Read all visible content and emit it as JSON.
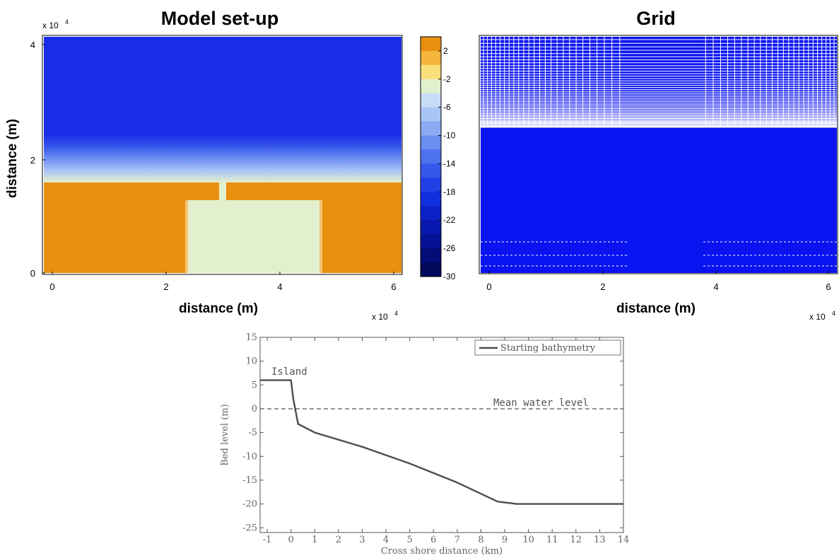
{
  "chart_data": [
    {
      "type": "heatmap",
      "title": "Model set-up",
      "xlabel": "distance (m)",
      "ylabel": "distance (m)",
      "x_exponent_label": "x 10",
      "x_exponent_power": "4",
      "y_exponent_label": "x 10",
      "y_exponent_power": "4",
      "xlim": [
        -0.2,
        6.2
      ],
      "ylim": [
        -0.1,
        4.1
      ],
      "xticks": [
        "0",
        "2",
        "4",
        "6"
      ],
      "yticks": [
        "0",
        "2",
        "4"
      ],
      "description_values": {
        "deep_water_level": -20,
        "shore_transition_y_range": [
          1.6,
          2.4
        ],
        "land_level": 2,
        "island_channel_level": -2,
        "channel_x_range": [
          2.35,
          4.7
        ],
        "channel_y_top": 1.25,
        "inlet_x_range": [
          2.95,
          3.05
        ]
      },
      "colorbar": {
        "ticks": [
          "2",
          "-2",
          "-6",
          "-10",
          "-14",
          "-18",
          "-22",
          "-26",
          "-30"
        ],
        "range": [
          -30,
          4
        ],
        "colors": [
          "#e8900f",
          "#f5b43c",
          "#f9e07a",
          "#e3f0cd",
          "#c7dcf7",
          "#a9c4f7",
          "#8aaaf4",
          "#6a8ef2",
          "#4d72ef",
          "#3458ea",
          "#2040e6",
          "#1230e0",
          "#0c22c8",
          "#0818ae",
          "#051294",
          "#030c78",
          "#02085c"
        ]
      }
    },
    {
      "type": "heatmap",
      "title": "Grid",
      "xlabel": "distance (m)",
      "x_exponent_label": "x 10",
      "x_exponent_power": "4",
      "xlim": [
        -0.2,
        6.2
      ],
      "ylim": [
        -0.1,
        4.1
      ],
      "xticks": [
        "0",
        "2",
        "4",
        "6"
      ],
      "grid_color": "#0a14f0"
    },
    {
      "type": "line",
      "xlabel": "Cross shore distance (km)",
      "ylabel": "Bed level (m)",
      "xlim": [
        -1.3,
        14
      ],
      "ylim": [
        -26,
        15
      ],
      "xticks": [
        "-1",
        "0",
        "1",
        "2",
        "3",
        "4",
        "5",
        "6",
        "7",
        "8",
        "9",
        "10",
        "11",
        "12",
        "13",
        "14"
      ],
      "yticks": [
        "15",
        "10",
        "5",
        "0",
        "-5",
        "-10",
        "-15",
        "-20",
        "-25"
      ],
      "legend_placement": "top-right",
      "series": [
        {
          "name": "Starting bathymetry",
          "x": [
            -1.3,
            0,
            0.1,
            0.3,
            1,
            3,
            5,
            7,
            8.7,
            9.5,
            14
          ],
          "y": [
            6,
            6,
            2,
            -3.2,
            -5,
            -8,
            -11.5,
            -15.5,
            -19.5,
            -20,
            -20
          ]
        }
      ],
      "annotations": {
        "island": "Island",
        "mwl": "Mean water level"
      },
      "mean_water_level": 0
    }
  ]
}
